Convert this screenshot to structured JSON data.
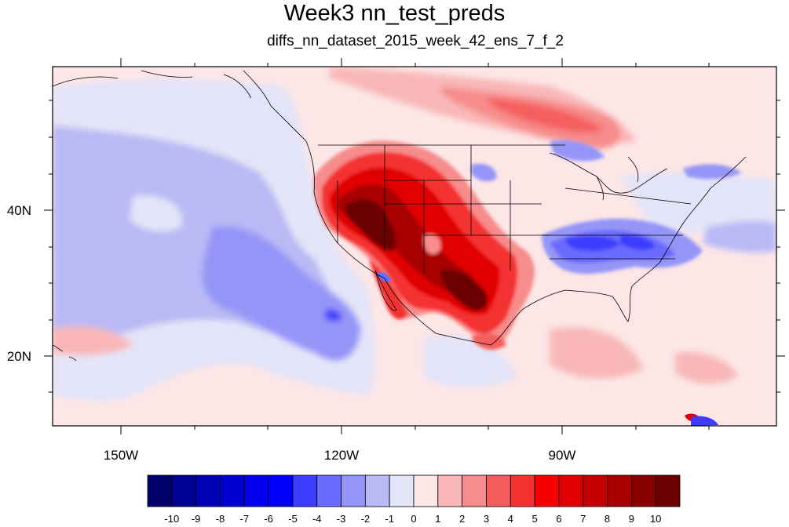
{
  "title": "Week3 nn_test_preds",
  "subtitle": "diffs_nn_dataset_2015_week_42_ens_7_f_2",
  "axes": {
    "x_labels": [
      "150W",
      "120W",
      "90W"
    ],
    "y_labels": [
      "40N",
      "20N"
    ]
  },
  "colorbar": {
    "labels": [
      "-10",
      "-9",
      "-8",
      "-7",
      "-6",
      "-5",
      "-4",
      "-3",
      "-2",
      "-1",
      "0",
      "1",
      "2",
      "3",
      "4",
      "5",
      "6",
      "7",
      "8",
      "9",
      "10"
    ],
    "colors": [
      "#00006b",
      "#000092",
      "#0000b5",
      "#0000d4",
      "#0000ee",
      "#0000ff",
      "#3d3dff",
      "#6b6bff",
      "#9595f8",
      "#b9b9f5",
      "#e4e4f8",
      "#fce6e6",
      "#f9b7b7",
      "#f78c8c",
      "#f45e5e",
      "#f43232",
      "#f70000",
      "#e00000",
      "#c60000",
      "#a80000",
      "#8a0000",
      "#6b0000"
    ]
  },
  "colors": {
    "background_field": "#fce6e6",
    "pacific_negative": "#9595f8",
    "land_positive": "#c60000"
  }
}
